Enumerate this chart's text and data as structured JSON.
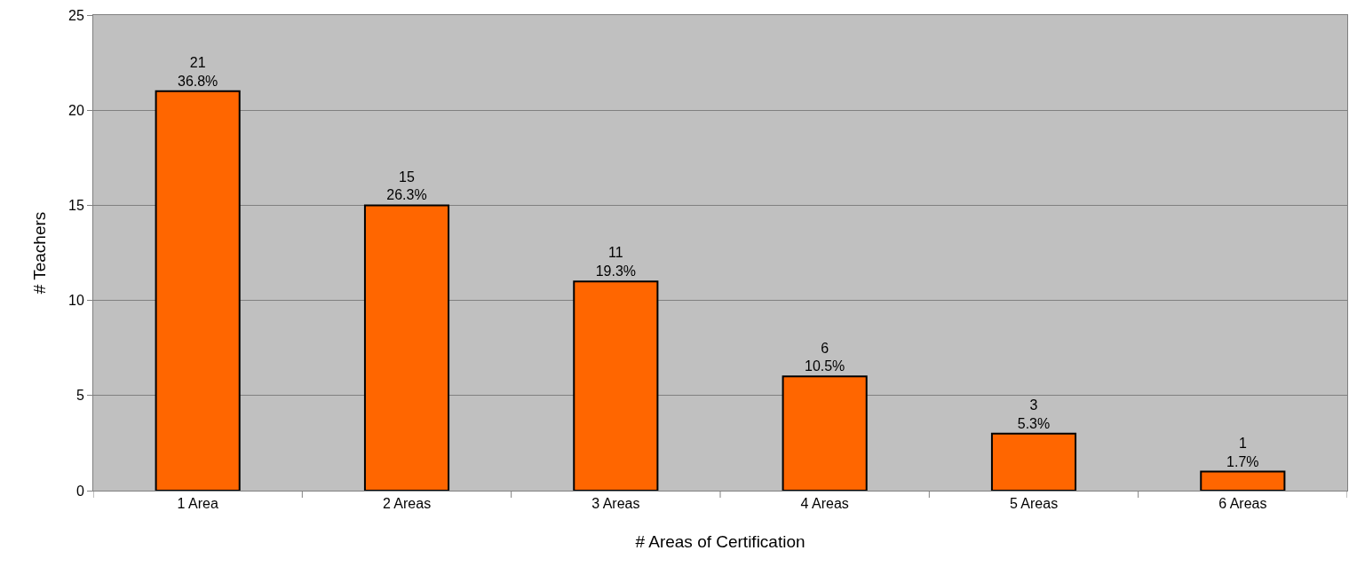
{
  "chart_data": {
    "type": "bar",
    "xlabel": "# Areas of Certification",
    "ylabel": "# Teachers",
    "categories": [
      "1 Area",
      "2 Areas",
      "3 Areas",
      "4 Areas",
      "5 Areas",
      "6 Areas"
    ],
    "values": [
      21,
      15,
      11,
      6,
      3,
      1
    ],
    "color": "#ff6600",
    "value_labels": [
      "21\n36.8%",
      "15\n26.3%",
      "11\n19.3%",
      "6\n10.5%",
      "3\n5.3%",
      "1\n1.7%"
    ],
    "ylim": [
      0,
      25
    ],
    "yticks": [
      0,
      5,
      10,
      15,
      20,
      25
    ],
    "grid": "y",
    "legend": false
  }
}
